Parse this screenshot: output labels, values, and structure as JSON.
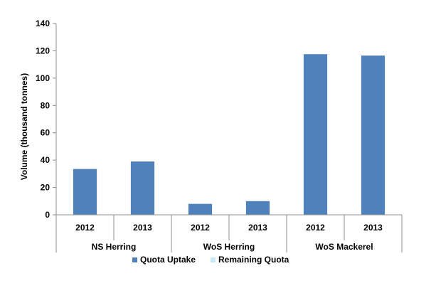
{
  "chart_data": {
    "type": "bar",
    "ylabel": "Volume (thousand tonnes)",
    "ylim": [
      0,
      140
    ],
    "yticks": [
      0,
      20,
      40,
      60,
      80,
      100,
      120,
      140
    ],
    "grid": false,
    "legend_position": "bottom",
    "groups": [
      {
        "label": "NS Herring",
        "categories": [
          "2012",
          "2013"
        ]
      },
      {
        "label": "WoS Herring",
        "categories": [
          "2012",
          "2013"
        ]
      },
      {
        "label": "WoS Mackerel",
        "categories": [
          "2012",
          "2013"
        ]
      }
    ],
    "series": [
      {
        "name": "Quota Uptake",
        "color": "#4f81bd",
        "values": [
          33.5,
          39,
          8,
          10,
          117.5,
          116.5
        ]
      },
      {
        "name": "Remaining Quota",
        "color": "#c6e8f5",
        "values": [
          0,
          0,
          0,
          0,
          0,
          0
        ]
      }
    ]
  }
}
